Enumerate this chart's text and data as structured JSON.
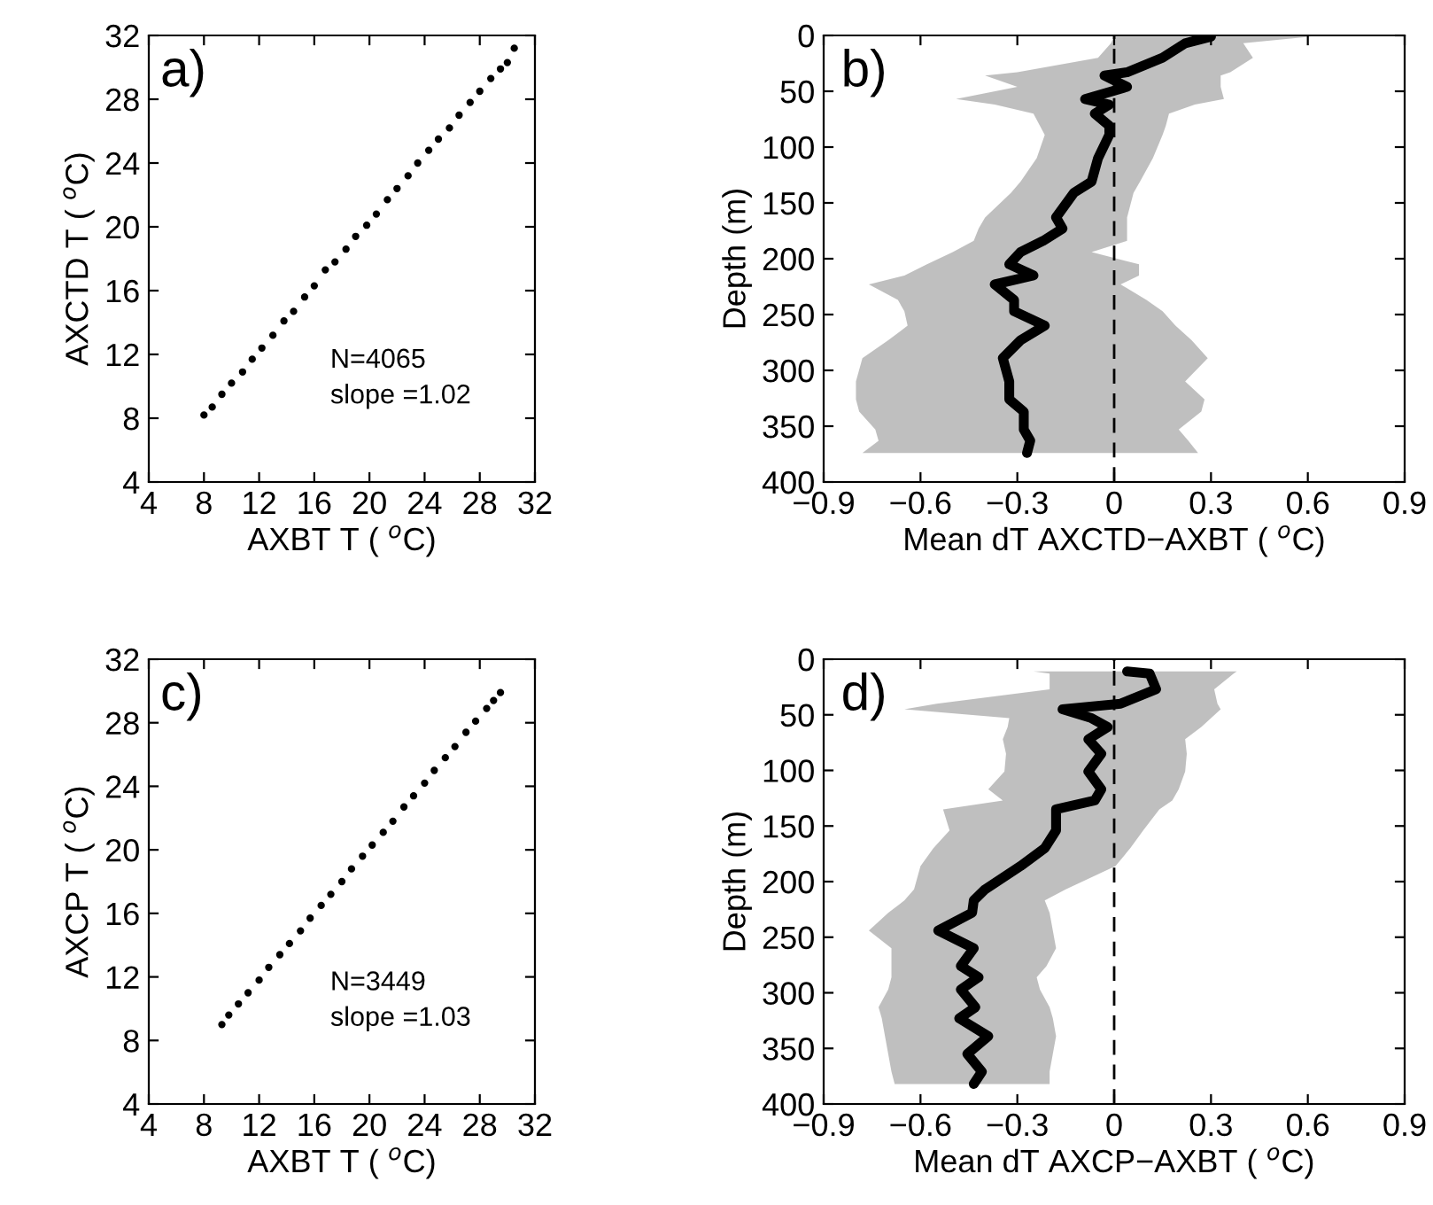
{
  "chart_data": [
    {
      "type": "scatter",
      "xlabel": "AXBT T ( $^{o}$C)",
      "ylabel": "AXCTD T ( $^{o}$C)",
      "annotations": [
        "a)",
        "N=4065",
        "slope =1.02"
      ],
      "xlim": [
        4,
        32
      ],
      "ylim": [
        4,
        32
      ],
      "xticks": [
        4,
        8,
        12,
        16,
        20,
        24,
        28,
        32
      ],
      "yticks": [
        4,
        8,
        12,
        16,
        20,
        24,
        28,
        32
      ],
      "grid": false,
      "marker": "circle",
      "series": [
        {
          "color": "#000000",
          "x": [
            8.0,
            8.6,
            9.3,
            10.0,
            10.8,
            11.5,
            12.2,
            13.0,
            13.8,
            14.5,
            15.3,
            16.0,
            16.8,
            17.5,
            18.3,
            19.0,
            19.8,
            20.5,
            21.3,
            22.0,
            22.8,
            23.5,
            24.3,
            25.0,
            25.8,
            26.5,
            27.3,
            28.0,
            28.8,
            29.5,
            30.0,
            30.5
          ],
          "values": [
            8.2,
            8.7,
            9.5,
            10.2,
            10.9,
            11.7,
            12.4,
            13.2,
            14.1,
            14.7,
            15.6,
            16.3,
            17.3,
            17.8,
            18.6,
            19.4,
            20.1,
            20.8,
            21.7,
            22.4,
            23.2,
            24.0,
            24.8,
            25.5,
            26.2,
            27.0,
            27.8,
            28.5,
            29.3,
            29.9,
            30.3,
            31.2
          ]
        }
      ]
    },
    {
      "type": "line",
      "orientation": "horizontal",
      "xlabel": "Mean dT AXCTD−AXBT ( $^{o}$C)",
      "ylabel": "Depth (m)",
      "annotations": [
        "b)"
      ],
      "xlim": [
        -0.9,
        0.9
      ],
      "ylim": [
        400,
        0
      ],
      "xticks": [
        {
          "value": -0.9,
          "label": "−0.9"
        },
        {
          "value": -0.6,
          "label": "−0.6"
        },
        {
          "value": -0.3,
          "label": "−0.3"
        },
        0,
        0.3,
        0.6,
        0.9
      ],
      "yticks": [
        0,
        50,
        100,
        150,
        200,
        250,
        300,
        350,
        400
      ],
      "grid": false,
      "ref_lines": [
        {
          "axis": "x",
          "value": 0,
          "line_style": "dashed",
          "color": "#000000"
        }
      ],
      "series": [
        {
          "type": "line",
          "color": "#000000",
          "values": [
            0.3,
            0.22,
            0.15,
            0.04,
            -0.03,
            0.04,
            -0.09,
            -0.015,
            -0.06,
            -0.015,
            -0.015,
            -0.05,
            -0.07,
            -0.125,
            -0.18,
            -0.16,
            -0.22,
            -0.29,
            -0.325,
            -0.25,
            -0.37,
            -0.31,
            -0.31,
            -0.215,
            -0.29,
            -0.345,
            -0.325,
            -0.325,
            -0.28,
            -0.28,
            -0.26,
            -0.27
          ],
          "x": [
            1,
            7,
            20,
            33,
            36,
            46,
            57,
            62,
            70,
            81,
            89,
            110,
            131,
            141,
            163,
            173,
            184,
            194,
            205,
            215,
            223,
            237,
            247,
            260,
            273,
            289,
            310,
            326,
            337,
            353,
            363,
            374
          ],
          "lower": [
            0.0,
            -0.01,
            -0.05,
            -0.3,
            -0.4,
            -0.3,
            -0.49,
            -0.37,
            -0.25,
            -0.23,
            -0.215,
            -0.24,
            -0.29,
            -0.32,
            -0.4,
            -0.42,
            -0.435,
            -0.5,
            -0.58,
            -0.65,
            -0.76,
            -0.67,
            -0.65,
            -0.64,
            -0.7,
            -0.78,
            -0.8,
            -0.8,
            -0.79,
            -0.74,
            -0.73,
            -0.78
          ],
          "upper": [
            0.61,
            0.4,
            0.43,
            0.36,
            0.33,
            0.33,
            0.34,
            0.25,
            0.17,
            0.16,
            0.15,
            0.12,
            0.08,
            0.06,
            0.04,
            0.04,
            0.04,
            -0.07,
            0.077,
            0.077,
            0.02,
            0.1,
            0.15,
            0.19,
            0.24,
            0.29,
            0.22,
            0.28,
            0.27,
            0.2,
            0.23,
            0.26
          ]
        }
      ]
    },
    {
      "type": "scatter",
      "xlabel": "AXBT T ( $^{o}$C)",
      "ylabel": "AXCP T ( $^{o}$C)",
      "annotations": [
        "c)",
        "N=3449",
        "slope =1.03"
      ],
      "xlim": [
        4,
        32
      ],
      "ylim": [
        4,
        32
      ],
      "xticks": [
        4,
        8,
        12,
        16,
        20,
        24,
        28,
        32
      ],
      "yticks": [
        4,
        8,
        12,
        16,
        20,
        24,
        28,
        32
      ],
      "grid": false,
      "marker": "circle",
      "series": [
        {
          "color": "#000000",
          "x": [
            9.3,
            9.8,
            10.5,
            11.2,
            12.0,
            12.7,
            13.5,
            14.2,
            15.0,
            15.7,
            16.5,
            17.2,
            18.0,
            18.7,
            19.5,
            20.2,
            21.0,
            21.7,
            22.5,
            23.2,
            24.0,
            24.7,
            25.5,
            26.2,
            27.0,
            27.7,
            28.5,
            29.0,
            29.5
          ],
          "values": [
            9.0,
            9.6,
            10.3,
            11.0,
            11.8,
            12.6,
            13.4,
            14.1,
            14.9,
            15.7,
            16.5,
            17.2,
            18.0,
            18.8,
            19.6,
            20.3,
            21.1,
            21.8,
            22.7,
            23.4,
            24.2,
            25.0,
            25.8,
            26.5,
            27.4,
            28.1,
            28.9,
            29.4,
            29.9
          ]
        }
      ]
    },
    {
      "type": "line",
      "orientation": "horizontal",
      "xlabel": "Mean dT AXCP−AXBT ( $^{o}$C)",
      "ylabel": "Depth (m)",
      "annotations": [
        "d)"
      ],
      "xlim": [
        -0.9,
        0.9
      ],
      "ylim": [
        400,
        0
      ],
      "xticks": [
        {
          "value": -0.9,
          "label": "−0.9"
        },
        {
          "value": -0.6,
          "label": "−0.6"
        },
        {
          "value": -0.3,
          "label": "−0.3"
        },
        0,
        0.3,
        0.6,
        0.9
      ],
      "yticks": [
        0,
        50,
        100,
        150,
        200,
        250,
        300,
        350,
        400
      ],
      "grid": false,
      "ref_lines": [
        {
          "axis": "x",
          "value": 0,
          "line_style": "dashed",
          "color": "#000000"
        }
      ],
      "series": [
        {
          "type": "line",
          "color": "#000000",
          "values": [
            0.04,
            0.11,
            0.13,
            0.02,
            -0.16,
            -0.07,
            -0.02,
            -0.08,
            -0.04,
            -0.08,
            -0.04,
            -0.06,
            -0.18,
            -0.18,
            -0.215,
            -0.29,
            -0.4,
            -0.435,
            -0.44,
            -0.545,
            -0.435,
            -0.475,
            -0.42,
            -0.475,
            -0.43,
            -0.48,
            -0.39,
            -0.455,
            -0.41,
            -0.435
          ],
          "x": [
            11,
            13,
            27,
            40,
            45,
            53,
            61,
            72,
            85,
            101,
            117,
            127,
            135,
            154,
            170,
            186,
            207,
            217,
            228,
            244,
            260,
            276,
            286,
            297,
            313,
            323,
            339,
            355,
            371,
            382
          ],
          "lower": [
            -0.25,
            -0.2,
            -0.2,
            -0.55,
            -0.65,
            -0.325,
            -0.33,
            -0.345,
            -0.335,
            -0.34,
            -0.39,
            -0.345,
            -0.53,
            -0.51,
            -0.56,
            -0.6,
            -0.62,
            -0.65,
            -0.7,
            -0.76,
            -0.69,
            -0.69,
            -0.69,
            -0.7,
            -0.73,
            -0.72,
            -0.71,
            -0.7,
            -0.69,
            -0.68
          ],
          "upper": [
            0.38,
            0.37,
            0.31,
            0.32,
            0.33,
            0.3,
            0.27,
            0.22,
            0.225,
            0.22,
            0.2,
            0.18,
            0.14,
            0.09,
            0.05,
            0.004,
            -0.15,
            -0.215,
            -0.2,
            -0.19,
            -0.18,
            -0.21,
            -0.24,
            -0.23,
            -0.2,
            -0.19,
            -0.18,
            -0.19,
            -0.2,
            -0.2
          ]
        }
      ]
    }
  ]
}
